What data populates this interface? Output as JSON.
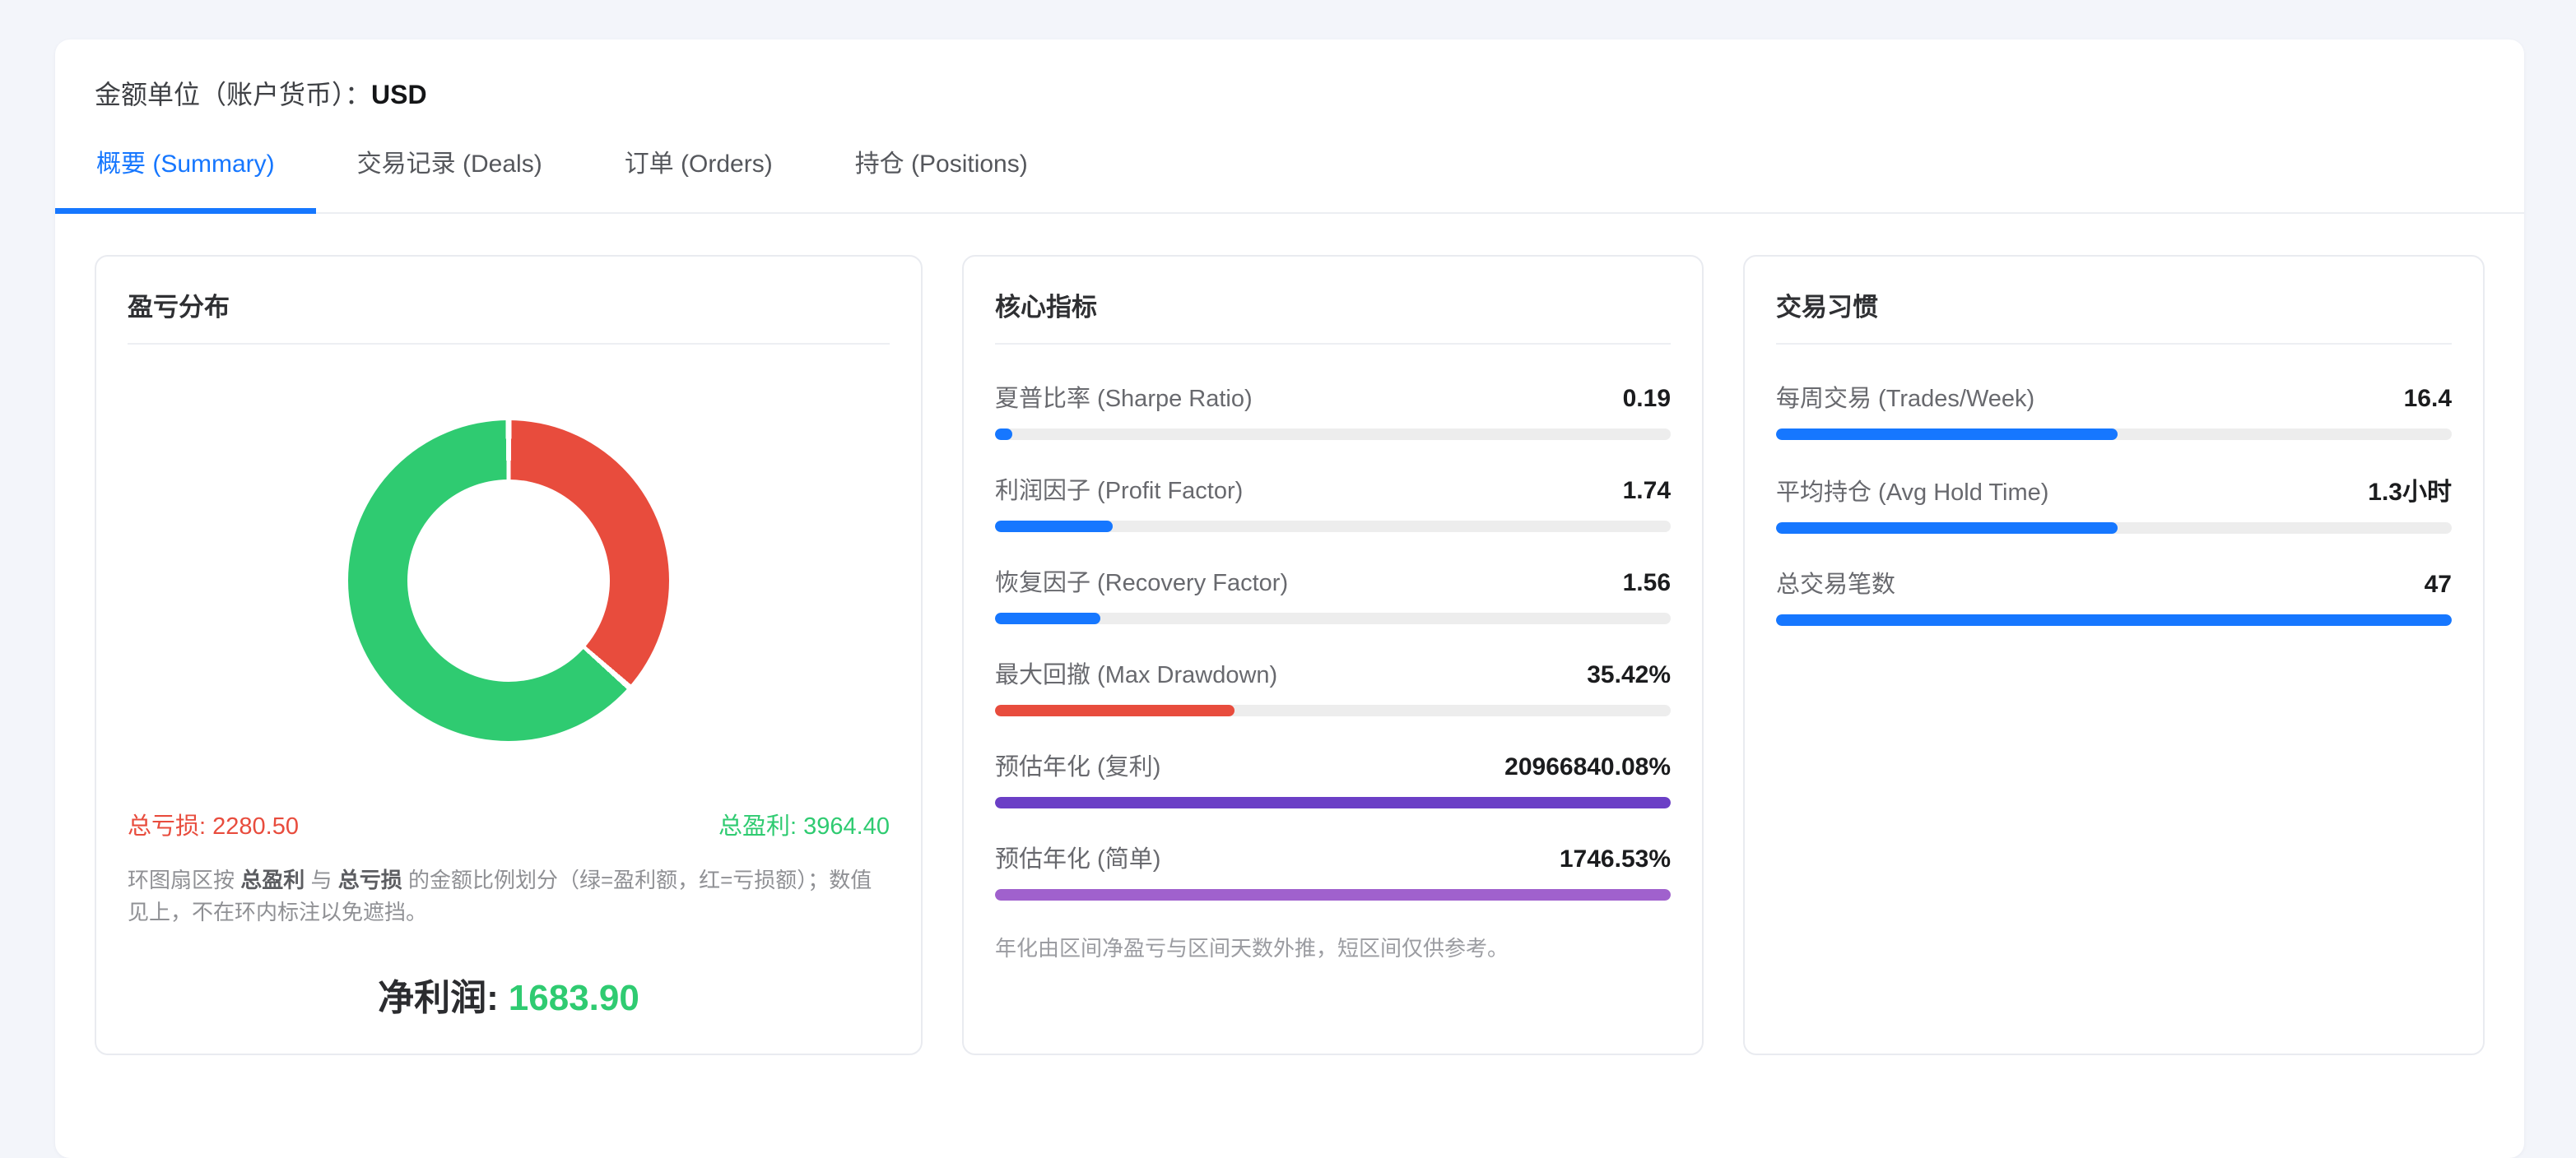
{
  "colors": {
    "accent_blue": "#1677ff",
    "loss_red": "#e84c3d",
    "profit_green": "#2fcb71",
    "purple_dark": "#6b3fc6",
    "purple_light": "#a061cd"
  },
  "header": {
    "label": "金额单位（账户货币）：",
    "currency": "USD"
  },
  "tabs": {
    "summary": "概要 (Summary)",
    "deals": "交易记录 (Deals)",
    "orders": "订单 (Orders)",
    "positions": "持仓 (Positions)"
  },
  "pnl_card": {
    "title": "盈亏分布",
    "loss_label": "总亏损:",
    "loss_value": "2280.50",
    "profit_label": "总盈利:",
    "profit_value": "3964.40",
    "note_parts": {
      "p0": "环图扇区按 ",
      "p1": "总盈利",
      "p2": " 与 ",
      "p3": "总亏损",
      "p4": " 的金额比例划分（绿=盈利额，红=亏损额）；数值见上，不在环内标注以免遮挡。"
    },
    "net_label": "净利润:",
    "net_value": "1683.90"
  },
  "core_card": {
    "title": "核心指标",
    "metrics": [
      {
        "label": "夏普比率 (Sharpe Ratio)",
        "value": "0.19",
        "pct": 2.6,
        "color": "#1677ff"
      },
      {
        "label": "利润因子 (Profit Factor)",
        "value": "1.74",
        "pct": 17.4,
        "color": "#1677ff"
      },
      {
        "label": "恢复因子 (Recovery Factor)",
        "value": "1.56",
        "pct": 15.6,
        "color": "#1677ff"
      },
      {
        "label": "最大回撤 (Max Drawdown)",
        "value": "35.42%",
        "pct": 35.4,
        "color": "#e84c3d"
      },
      {
        "label": "预估年化 (复利)",
        "value": "20966840.08%",
        "pct": 100,
        "color": "#6b3fc6"
      },
      {
        "label": "预估年化 (简单)",
        "value": "1746.53%",
        "pct": 100,
        "color": "#a061cd"
      }
    ],
    "note": "年化由区间净盈亏与区间天数外推，短区间仅供参考。"
  },
  "habits_card": {
    "title": "交易习惯",
    "metrics": [
      {
        "label": "每周交易 (Trades/Week)",
        "value": "16.4",
        "pct": 50.6,
        "color": "#1677ff"
      },
      {
        "label": "平均持仓 (Avg Hold Time)",
        "value": "1.3小时",
        "pct": 50.6,
        "color": "#1677ff"
      },
      {
        "label": "总交易笔数",
        "value": "47",
        "pct": 100,
        "color": "#1677ff"
      }
    ]
  },
  "chart_data": [
    {
      "type": "pie",
      "title": "盈亏分布",
      "labels": [
        "总亏损",
        "总盈利"
      ],
      "values": [
        2280.5,
        3964.4
      ],
      "colors": [
        "#e84c3d",
        "#2fcb71"
      ],
      "donut": true,
      "inner_radius_ratio": 0.63,
      "start_angle_deg": 0,
      "direction": "clockwise-from-top, loss slice first",
      "annotations": [
        "总亏损: 2280.50",
        "总盈利: 3964.40",
        "净利润: 1683.90"
      ]
    },
    {
      "type": "bar",
      "title": "核心指标",
      "categories": [
        "夏普比率 (Sharpe Ratio)",
        "利润因子 (Profit Factor)",
        "恢复因子 (Recovery Factor)",
        "最大回撤 (Max Drawdown)",
        "预估年化 (复利)",
        "预估年化 (简单)"
      ],
      "values": [
        0.19,
        1.74,
        1.56,
        35.42,
        20966840.08,
        1746.53
      ],
      "value_labels": [
        "0.19",
        "1.74",
        "1.56",
        "35.42%",
        "20966840.08%",
        "1746.53%"
      ],
      "bar_fill_percent": [
        2.6,
        17.4,
        15.6,
        35.4,
        100,
        100
      ],
      "orientation": "horizontal"
    },
    {
      "type": "bar",
      "title": "交易习惯",
      "categories": [
        "每周交易 (Trades/Week)",
        "平均持仓 (Avg Hold Time)",
        "总交易笔数"
      ],
      "values": [
        16.4,
        1.3,
        47
      ],
      "value_labels": [
        "16.4",
        "1.3小时",
        "47"
      ],
      "bar_fill_percent": [
        50.6,
        50.6,
        100
      ],
      "orientation": "horizontal"
    }
  ]
}
